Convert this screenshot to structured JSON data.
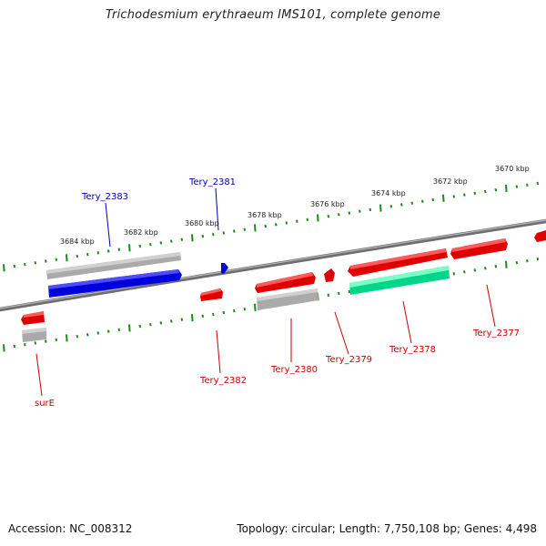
{
  "title": "Trichodesmium erythraeum IMS101, complete genome",
  "footer": {
    "accession": "Accession: NC_008312",
    "summary": "Topology: circular; Length: 7,750,108 bp; Genes: 4,498"
  },
  "scale_labels": [
    "3684 kbp",
    "3682 kbp",
    "3680 kbp",
    "3678 kbp",
    "3676 kbp",
    "3674 kbp",
    "3672 kbp",
    "3670 kbp"
  ],
  "gene_labels": {
    "tery_2383": "Tery_2383",
    "tery_2381": "Tery_2381",
    "tery_2382": "Tery_2382",
    "tery_2380": "Tery_2380",
    "tery_2379": "Tery_2379",
    "tery_2378": "Tery_2378",
    "tery_2377": "Tery_2377",
    "sure": "surE"
  },
  "colors": {
    "forward_gene": "#e00000",
    "reverse_gene": "#0000dd",
    "rna_gene": "#00e08a",
    "other_feature": "#b0b0b0",
    "backbone": "#808080",
    "ticks": "#1a8a1a",
    "label_red": "#cc0000",
    "label_blue": "#0000aa"
  }
}
